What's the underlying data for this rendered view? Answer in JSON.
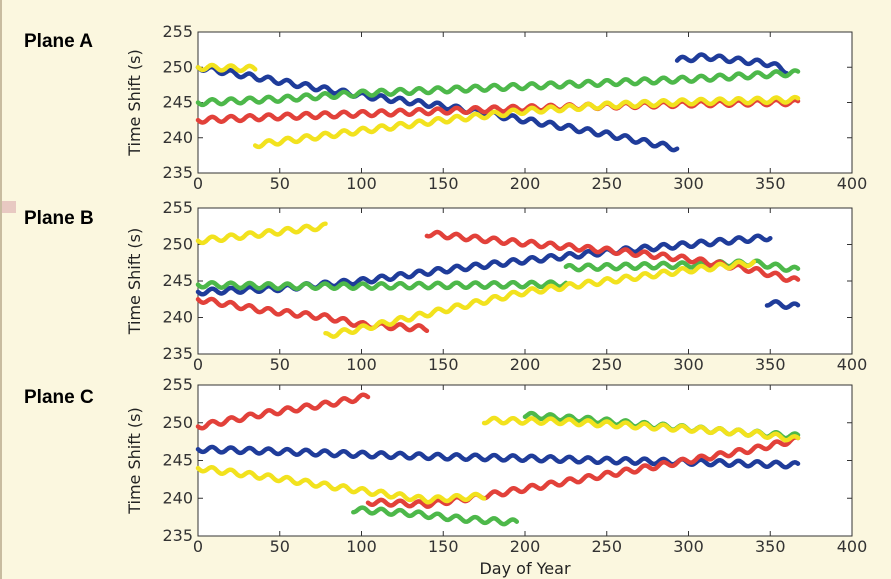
{
  "colors": {
    "blue": "#1f3c9a",
    "green": "#4db84a",
    "red": "#e2413a",
    "yellow": "#f2e21e"
  },
  "chart_data": [
    {
      "type": "line",
      "title": "Plane A",
      "xlabel": "",
      "ylabel": "Time Shift (s)",
      "xlim": [
        0,
        400
      ],
      "ylim": [
        235,
        255
      ],
      "xticks": [
        0,
        50,
        100,
        150,
        200,
        250,
        300,
        350,
        400
      ],
      "yticks": [
        235,
        240,
        245,
        250,
        255
      ],
      "series": [
        {
          "color": "blue",
          "segments": [
            {
              "x": [
                0,
                50,
                100,
                150,
                200,
                250,
                293
              ],
              "y": [
                250,
                248,
                246,
                244.5,
                242.5,
                240.5,
                238.5
              ]
            },
            {
              "x": [
                293,
                310,
                330,
                350,
                360
              ],
              "y": [
                251,
                251.5,
                251,
                250.5,
                249.5
              ]
            }
          ]
        },
        {
          "color": "green",
          "segments": [
            {
              "x": [
                0,
                50,
                100,
                150,
                200,
                250,
                300,
                350,
                367
              ],
              "y": [
                245,
                245.5,
                246.3,
                246.8,
                247.3,
                247.8,
                248.3,
                249,
                249.2
              ]
            }
          ]
        },
        {
          "color": "red",
          "segments": [
            {
              "x": [
                0,
                50,
                100,
                150,
                200,
                250,
                300,
                350,
                367
              ],
              "y": [
                242.5,
                243,
                243.4,
                243.8,
                244.2,
                244.5,
                244.8,
                245,
                245
              ]
            }
          ]
        },
        {
          "color": "yellow",
          "segments": [
            {
              "x": [
                0,
                35
              ],
              "y": [
                250,
                249.8
              ]
            },
            {
              "x": [
                35,
                100,
                150,
                200,
                250,
                300,
                367
              ],
              "y": [
                239,
                241,
                242.5,
                243.8,
                244.6,
                245.1,
                245.4
              ]
            }
          ]
        }
      ]
    },
    {
      "type": "line",
      "title": "Plane B",
      "xlabel": "",
      "ylabel": "Time Shift (s)",
      "xlim": [
        0,
        400
      ],
      "ylim": [
        235,
        255
      ],
      "xticks": [
        0,
        50,
        100,
        150,
        200,
        250,
        300,
        350,
        400
      ],
      "yticks": [
        235,
        240,
        245,
        250,
        255
      ],
      "series": [
        {
          "color": "blue",
          "segments": [
            {
              "x": [
                0,
                50,
                100,
                150,
                200,
                250,
                300,
                350
              ],
              "y": [
                243.5,
                244,
                245,
                246.5,
                247.8,
                249,
                250,
                251
              ]
            },
            {
              "x": [
                348,
                367
              ],
              "y": [
                242,
                241.5
              ]
            }
          ]
        },
        {
          "color": "green",
          "segments": [
            {
              "x": [
                0,
                50,
                100,
                150,
                200,
                225
              ],
              "y": [
                244.5,
                244.3,
                244.3,
                244.4,
                244.5,
                244.6
              ]
            },
            {
              "x": [
                225,
                260,
                300,
                340,
                367
              ],
              "y": [
                246.8,
                247,
                247.2,
                247.5,
                246.5
              ]
            }
          ]
        },
        {
          "color": "red",
          "segments": [
            {
              "x": [
                0,
                40,
                80,
                100,
                140
              ],
              "y": [
                242.5,
                241,
                240,
                239,
                238.5
              ]
            },
            {
              "x": [
                140,
                180,
                220,
                260,
                300,
                340,
                367
              ],
              "y": [
                251.5,
                250.6,
                249.8,
                249,
                248,
                246.5,
                245
              ]
            }
          ]
        },
        {
          "color": "yellow",
          "segments": [
            {
              "x": [
                0,
                40,
                78
              ],
              "y": [
                250.5,
                251.5,
                252.5
              ]
            },
            {
              "x": [
                78,
                100,
                150,
                200,
                250,
                300,
                340
              ],
              "y": [
                237.5,
                238.5,
                241,
                243.5,
                245,
                246.5,
                247.5
              ]
            }
          ]
        }
      ]
    },
    {
      "type": "line",
      "title": "Plane C",
      "xlabel": "Day of Year",
      "ylabel": "Time Shift (s)",
      "xlim": [
        0,
        400
      ],
      "ylim": [
        235,
        255
      ],
      "xticks": [
        0,
        50,
        100,
        150,
        200,
        250,
        300,
        350,
        400
      ],
      "yticks": [
        235,
        240,
        245,
        250,
        255
      ],
      "series": [
        {
          "color": "blue",
          "segments": [
            {
              "x": [
                0,
                50,
                100,
                150,
                200,
                250,
                300,
                350,
                367
              ],
              "y": [
                246.5,
                246.2,
                245.8,
                245.5,
                245.3,
                245,
                244.8,
                244.5,
                244.4
              ]
            }
          ]
        },
        {
          "color": "green",
          "segments": [
            {
              "x": [
                95,
                130,
                160,
                195
              ],
              "y": [
                238.5,
                238,
                237.3,
                236.8
              ]
            },
            {
              "x": [
                200,
                240,
                280,
                320,
                367
              ],
              "y": [
                251,
                250.4,
                249.6,
                248.9,
                248.2
              ]
            }
          ]
        },
        {
          "color": "red",
          "segments": [
            {
              "x": [
                0,
                40,
                80,
                104
              ],
              "y": [
                249.5,
                251.2,
                252.5,
                253.5
              ]
            },
            {
              "x": [
                104,
                140,
                180,
                220,
                260,
                300,
                340,
                367
              ],
              "y": [
                239.5,
                239.2,
                240.5,
                242,
                243.5,
                245,
                246.5,
                247.8
              ]
            }
          ]
        },
        {
          "color": "yellow",
          "segments": [
            {
              "x": [
                0,
                50,
                100,
                140,
                175
              ],
              "y": [
                244,
                242.6,
                241,
                239.8,
                240.3
              ]
            },
            {
              "x": [
                175,
                220,
                260,
                300,
                340,
                367
              ],
              "y": [
                250.3,
                250.2,
                249.7,
                249.2,
                248.6,
                247.8
              ]
            }
          ]
        }
      ]
    }
  ]
}
